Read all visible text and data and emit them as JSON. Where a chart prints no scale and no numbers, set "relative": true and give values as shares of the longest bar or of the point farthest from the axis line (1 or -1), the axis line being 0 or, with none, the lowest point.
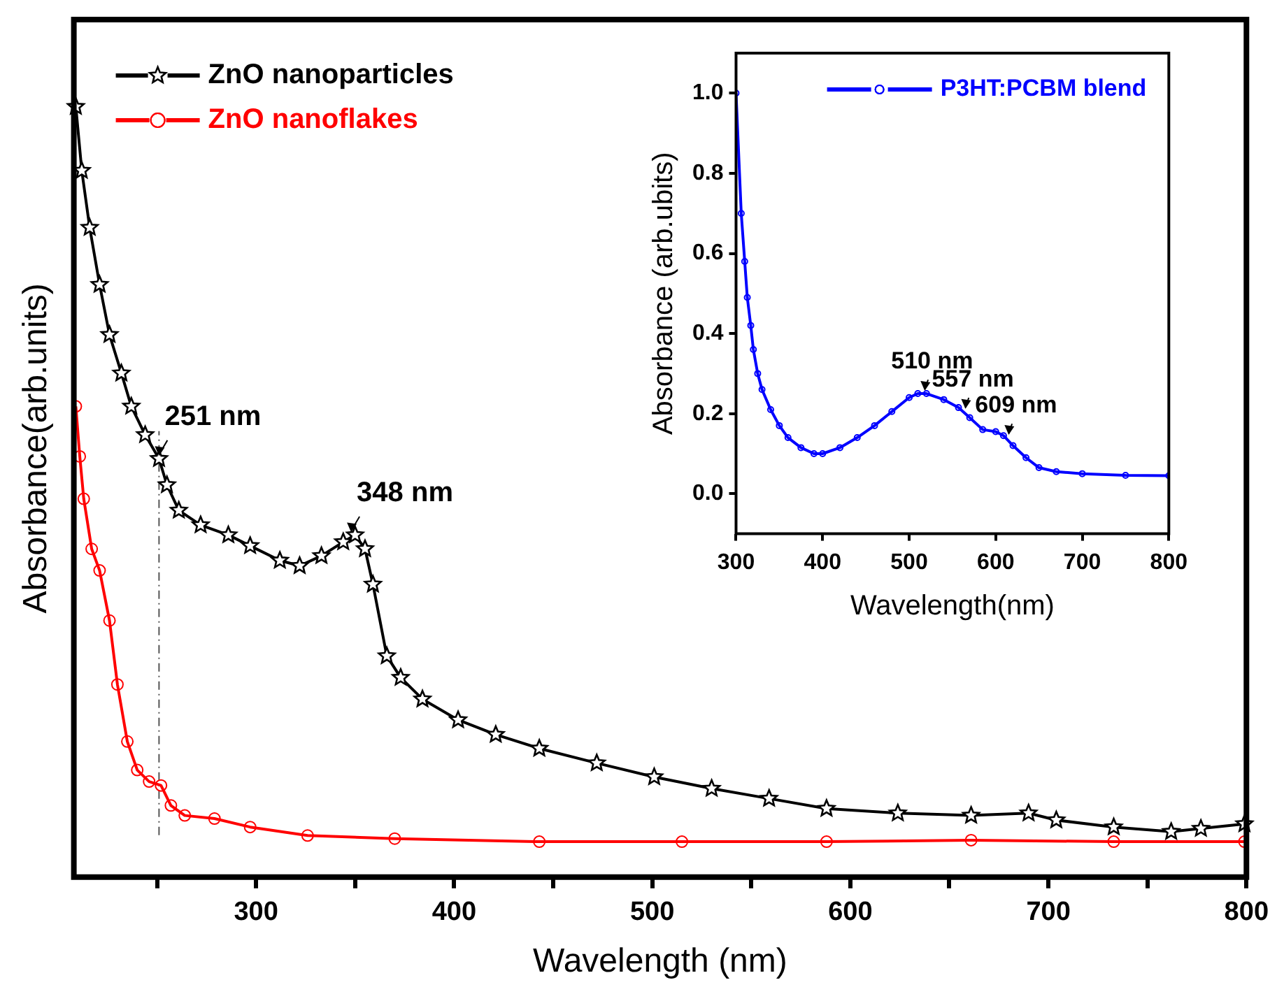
{
  "chart_data": [
    {
      "type": "line",
      "xlabel": "Wavelength (nm)",
      "ylabel": "Absorbance(arb.units)",
      "relative": true,
      "grid": false,
      "legend": "top left",
      "xlim": [
        208,
        800
      ],
      "xticks": [
        {
          "value": 250,
          "label": null
        },
        300,
        {
          "value": 350,
          "label": null
        },
        400,
        {
          "value": 450,
          "label": null
        },
        500,
        {
          "value": 550,
          "label": null
        },
        600,
        {
          "value": 650,
          "label": null
        },
        700,
        {
          "value": 750,
          "label": null
        },
        800
      ],
      "ref_lines": [
        {
          "axis": "x",
          "value": 251,
          "line_style": "dashed",
          "color": "#555555"
        }
      ],
      "annotations": [
        {
          "text": "251 nm",
          "x": 251,
          "y": 0.543
        },
        {
          "text": "348 nm",
          "x": 348,
          "y": 0.444
        }
      ],
      "series": [
        {
          "name": "ZnO nanoparticles",
          "color": "#000000",
          "marker": "star",
          "x": [
            209,
            212,
            216,
            221,
            226,
            232,
            237,
            244,
            251,
            255,
            261,
            272,
            286,
            297,
            312,
            322,
            333,
            344,
            350,
            355,
            359,
            366,
            373,
            384,
            402,
            421,
            443,
            472,
            501,
            530,
            559,
            588,
            624,
            661,
            690,
            704,
            733,
            762,
            777,
            799
          ],
          "values": [
            1.0,
            0.917,
            0.843,
            0.769,
            0.704,
            0.654,
            0.611,
            0.574,
            0.543,
            0.509,
            0.476,
            0.457,
            0.444,
            0.43,
            0.411,
            0.404,
            0.417,
            0.435,
            0.444,
            0.426,
            0.38,
            0.287,
            0.259,
            0.231,
            0.204,
            0.185,
            0.167,
            0.148,
            0.13,
            0.115,
            0.102,
            0.089,
            0.083,
            0.08,
            0.083,
            0.074,
            0.065,
            0.059,
            0.063,
            0.069
          ]
        },
        {
          "name": "ZnO nanoflakes",
          "color": "#ff0000",
          "marker": "circle",
          "x": [
            209,
            211,
            213,
            217,
            221,
            226,
            230,
            235,
            240,
            246,
            252,
            257,
            264,
            279,
            297,
            326,
            370,
            443,
            515,
            588,
            661,
            733,
            799
          ],
          "values": [
            0.611,
            0.546,
            0.491,
            0.426,
            0.398,
            0.333,
            0.25,
            0.176,
            0.139,
            0.124,
            0.119,
            0.093,
            0.08,
            0.076,
            0.065,
            0.054,
            0.05,
            0.046,
            0.046,
            0.046,
            0.048,
            0.046,
            0.046
          ]
        }
      ]
    },
    {
      "type": "line",
      "xlabel": "Wavelength(nm)",
      "ylabel": "Absorbance (arb.ubits)",
      "grid": false,
      "legend": "top right",
      "xlim": [
        300,
        800
      ],
      "xticks": [
        300,
        400,
        500,
        600,
        700,
        800
      ],
      "ylim": [
        -0.1,
        1.1
      ],
      "yticks": [
        {
          "value": 0,
          "label": "0.0"
        },
        0.2,
        0.4,
        0.6,
        0.8,
        {
          "value": 1,
          "label": "1.0"
        }
      ],
      "annotations": [
        {
          "text": "510 nm",
          "x": 518,
          "y": 0.25
        },
        {
          "text": "557 nm",
          "x": 565,
          "y": 0.205
        },
        {
          "text": "609 nm",
          "x": 615,
          "y": 0.14
        }
      ],
      "series": [
        {
          "name": "P3HT:PCBM blend",
          "color": "#0000ff",
          "marker": "circle",
          "x": [
            300,
            306,
            310,
            313,
            317,
            320,
            325,
            330,
            340,
            350,
            360,
            375,
            390,
            400,
            420,
            440,
            460,
            480,
            500,
            510,
            520,
            540,
            557,
            570,
            585,
            600,
            609,
            620,
            635,
            650,
            670,
            700,
            750,
            800
          ],
          "values": [
            1.0,
            0.7,
            0.58,
            0.49,
            0.42,
            0.36,
            0.3,
            0.26,
            0.21,
            0.17,
            0.14,
            0.115,
            0.1,
            0.1,
            0.115,
            0.14,
            0.17,
            0.205,
            0.24,
            0.25,
            0.25,
            0.235,
            0.215,
            0.19,
            0.16,
            0.155,
            0.145,
            0.12,
            0.09,
            0.065,
            0.055,
            0.05,
            0.046,
            0.045
          ]
        }
      ]
    }
  ]
}
